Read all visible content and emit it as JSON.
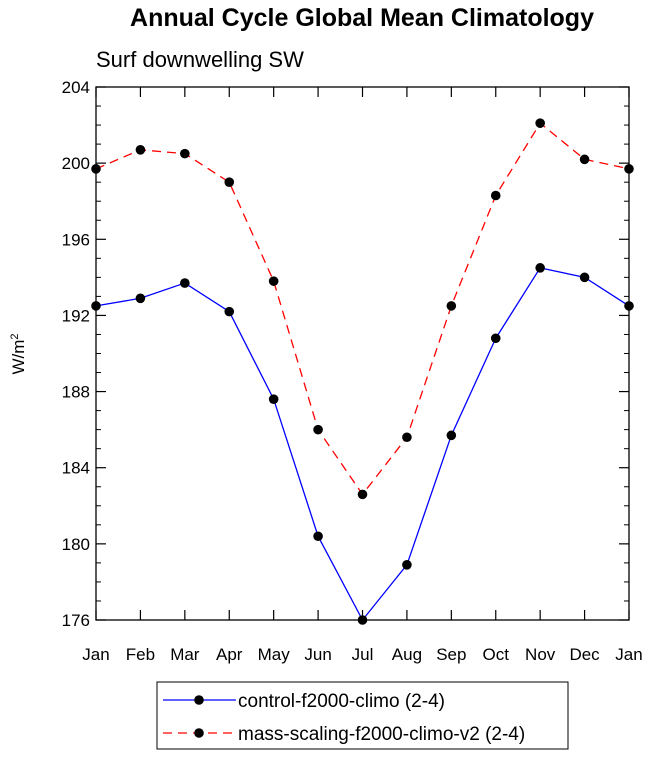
{
  "chart_data": {
    "type": "line",
    "title": "Annual Cycle Global Mean Climatology",
    "subtitle": "Surf downwelling SW",
    "ylabel": "W/m",
    "ylabel_superscript": "2",
    "xlabel": "",
    "categories": [
      "Jan",
      "Feb",
      "Mar",
      "Apr",
      "May",
      "Jun",
      "Jul",
      "Aug",
      "Sep",
      "Oct",
      "Nov",
      "Dec",
      "Jan"
    ],
    "ylim": [
      176,
      204
    ],
    "yticks": [
      176,
      180,
      184,
      188,
      192,
      196,
      200,
      204
    ],
    "ytick_labels": [
      "176",
      "180",
      "184",
      "188",
      "192",
      "196",
      "200",
      "204"
    ],
    "series": [
      {
        "name": "control-f2000-climo (2-4)",
        "color": "#0000ff",
        "dash": "solid",
        "marker": "filled-circle",
        "values": [
          192.5,
          192.9,
          193.7,
          192.2,
          187.6,
          180.4,
          176.0,
          178.9,
          185.7,
          190.8,
          194.5,
          194.0,
          192.5
        ]
      },
      {
        "name": "mass-scaling-f2000-climo-v2 (2-4)",
        "color": "#ff0000",
        "dash": "dashed",
        "marker": "filled-circle",
        "values": [
          199.7,
          200.7,
          200.5,
          199.0,
          193.8,
          186.0,
          182.6,
          185.6,
          192.5,
          198.3,
          202.1,
          200.2,
          199.7
        ]
      }
    ],
    "grid": false,
    "legend_position": "bottom-center"
  }
}
